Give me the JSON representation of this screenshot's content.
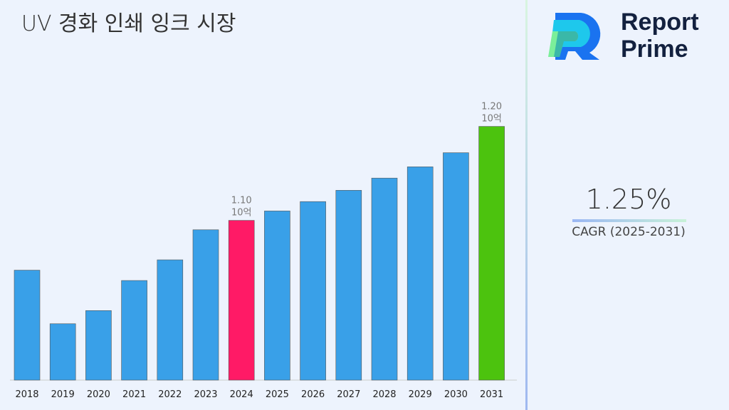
{
  "title": "UV 경화 인쇄 잉크 시장",
  "logo": {
    "line1": "Report",
    "line2": "Prime"
  },
  "cagr": {
    "value": "1.25%",
    "label": "CAGR (2025-2031)"
  },
  "colors": {
    "default": "#39a0e8",
    "highlight_2024": "#ff1a66",
    "highlight_2031": "#4cc30e"
  },
  "chart_data": {
    "type": "bar",
    "title": "UV 경화 인쇄 잉크 시장",
    "categories": [
      "2018",
      "2019",
      "2020",
      "2021",
      "2022",
      "2023",
      "2024",
      "2025",
      "2026",
      "2027",
      "2028",
      "2029",
      "2030",
      "2031"
    ],
    "values": [
      1.047,
      0.99,
      1.004,
      1.036,
      1.058,
      1.09,
      1.1,
      1.11,
      1.12,
      1.132,
      1.145,
      1.157,
      1.172,
      1.2
    ],
    "unit": "10억",
    "ylim": [
      0.93,
      1.24
    ],
    "grid": false,
    "data_labels": [
      {
        "category": "2024",
        "value": "1.10",
        "unit": "10억"
      },
      {
        "category": "2031",
        "value": "1.20",
        "unit": "10억"
      }
    ]
  }
}
